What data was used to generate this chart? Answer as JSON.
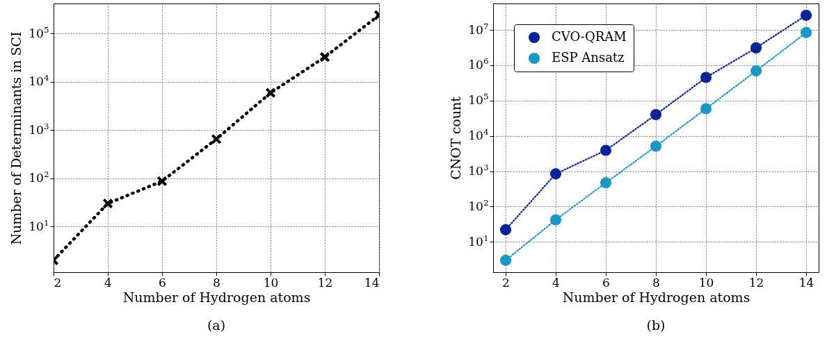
{
  "chart_data": [
    {
      "type": "line",
      "xlabel": "Number of Hydrogen atoms",
      "ylabel": "Number of Determinants in SCI",
      "annotations": [
        "(a)"
      ],
      "x": [
        2,
        4,
        6,
        8,
        10,
        12,
        14
      ],
      "series": [
        {
          "color": "#000000",
          "values": [
            2,
            30,
            87,
            650,
            5900,
            32500,
            240000
          ]
        }
      ],
      "xlim": [
        2,
        14
      ],
      "xticks": [
        2,
        4,
        6,
        8,
        10,
        12,
        14
      ],
      "ylim": [
        1.13,
        420000
      ],
      "yticks": [
        {
          "value": 10,
          "label": "10$^{1}$"
        },
        {
          "value": 100,
          "label": "10$^{2}$"
        },
        {
          "value": 1000,
          "label": "10$^{3}$"
        },
        {
          "value": 10000,
          "label": "10$^{4}$"
        },
        {
          "value": 100000,
          "label": "10$^{5}$"
        }
      ],
      "log": "y",
      "grid": true,
      "marker": "cross",
      "line_style": "dotted"
    },
    {
      "type": "line",
      "xlabel": "Number of Hydrogen atoms",
      "ylabel": "CNOT count",
      "annotations": [
        "(b)"
      ],
      "x": [
        2,
        4,
        6,
        8,
        10,
        12,
        14
      ],
      "series": [
        {
          "name": "CVO-QRAM",
          "color": "#0c2398",
          "values": [
            22,
            840,
            3900,
            40000,
            450000,
            3100000,
            26000000
          ]
        },
        {
          "name": "ESP Ansatz",
          "color": "#1a97c6",
          "values": [
            3,
            42,
            470,
            5100,
            59000,
            690000,
            8400000
          ]
        }
      ],
      "xlim": [
        1.5,
        14.5
      ],
      "xticks": [
        2,
        4,
        6,
        8,
        10,
        12,
        14
      ],
      "ylim": [
        1.38,
        56000000
      ],
      "yticks": [
        {
          "value": 10,
          "label": "10$^{1}$"
        },
        {
          "value": 100,
          "label": "10$^{2}$"
        },
        {
          "value": 1000,
          "label": "10$^{3}$"
        },
        {
          "value": 10000,
          "label": "10$^{4}$"
        },
        {
          "value": 100000,
          "label": "10$^{5}$"
        },
        {
          "value": 1000000,
          "label": "10$^{6}$"
        },
        {
          "value": 10000000,
          "label": "10$^{7}$"
        }
      ],
      "log": "y",
      "grid": true,
      "legend": "top left",
      "marker": "circle",
      "line_style": "dotted"
    }
  ]
}
